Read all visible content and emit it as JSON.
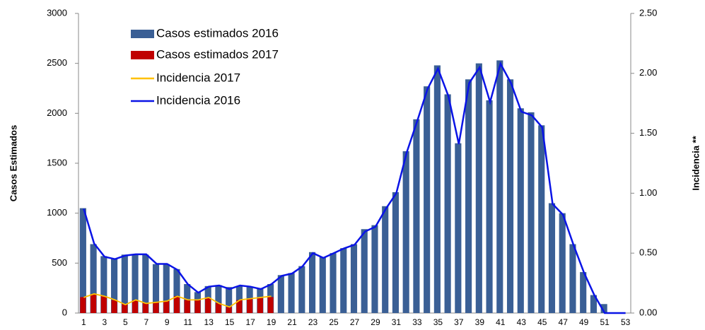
{
  "chart_data": {
    "type": "bar",
    "categories": [
      1,
      null,
      3,
      null,
      5,
      null,
      7,
      null,
      9,
      null,
      11,
      null,
      13,
      null,
      15,
      null,
      17,
      null,
      19,
      null,
      21,
      null,
      23,
      null,
      25,
      null,
      27,
      null,
      29,
      null,
      31,
      null,
      33,
      null,
      35,
      null,
      37,
      null,
      39,
      null,
      41,
      null,
      43,
      null,
      45,
      null,
      47,
      null,
      49,
      null,
      51,
      null,
      53
    ],
    "series": [
      {
        "name": "Casos estimados 2016",
        "type": "bar",
        "color": "#3a5f95",
        "values": [
          1050,
          690,
          570,
          545,
          585,
          590,
          585,
          490,
          490,
          440,
          290,
          210,
          270,
          280,
          260,
          270,
          260,
          250,
          290,
          380,
          400,
          470,
          610,
          560,
          600,
          650,
          690,
          840,
          880,
          1070,
          1210,
          1620,
          1940,
          2270,
          2480,
          2190,
          1700,
          2340,
          2500,
          2130,
          2530,
          2340,
          2050,
          2010,
          1880,
          1100,
          1000,
          690,
          410,
          180,
          90,
          0,
          0
        ]
      },
      {
        "name": "Casos estimados 2017",
        "type": "bar",
        "color": "#c00000",
        "values": [
          160,
          190,
          170,
          130,
          90,
          130,
          100,
          110,
          120,
          170,
          130,
          130,
          150,
          100,
          60,
          130,
          140,
          150,
          160,
          null,
          null,
          null,
          null,
          null,
          null,
          null,
          null,
          null,
          null,
          null,
          null,
          null,
          null,
          null,
          null,
          null,
          null,
          null,
          null,
          null,
          null,
          null,
          null,
          null,
          null,
          null,
          null,
          null,
          null,
          null,
          null,
          null,
          null
        ]
      },
      {
        "name": "Incidencia 2017",
        "type": "line",
        "axis": "y2",
        "color": "#ffc000",
        "values": [
          0.13,
          0.16,
          0.14,
          0.11,
          0.07,
          0.11,
          0.08,
          0.09,
          0.1,
          0.14,
          0.11,
          0.11,
          0.13,
          0.08,
          0.05,
          0.11,
          0.12,
          0.13,
          0.14,
          null,
          null,
          null,
          null,
          null,
          null,
          null,
          null,
          null,
          null,
          null,
          null,
          null,
          null,
          null,
          null,
          null,
          null,
          null,
          null,
          null,
          null,
          null,
          null,
          null,
          null,
          null,
          null,
          null,
          null,
          null,
          null,
          null,
          null
        ]
      },
      {
        "name": "Incidencia 2016",
        "type": "line",
        "axis": "y2",
        "color": "#0a14e6",
        "values": [
          0.87,
          0.58,
          0.47,
          0.45,
          0.48,
          0.49,
          0.49,
          0.41,
          0.41,
          0.36,
          0.24,
          0.17,
          0.22,
          0.23,
          0.2,
          0.23,
          0.22,
          0.2,
          0.24,
          0.31,
          0.33,
          0.39,
          0.5,
          0.46,
          0.5,
          0.54,
          0.57,
          0.68,
          0.72,
          0.87,
          1.0,
          1.34,
          1.6,
          1.87,
          2.04,
          1.81,
          1.41,
          1.92,
          2.05,
          1.76,
          2.08,
          1.92,
          1.68,
          1.65,
          1.55,
          0.91,
          0.82,
          0.57,
          0.34,
          0.15,
          0.0,
          0.0,
          0.0
        ]
      }
    ],
    "ylabel": "Casos Estimados",
    "y2label": "Incidencia **",
    "ylim": [
      0,
      3000
    ],
    "yticks": [
      0,
      500,
      1000,
      1500,
      2000,
      2500,
      3000
    ],
    "y2lim": [
      0,
      2.5
    ],
    "y2ticks": [
      {
        "value": 0,
        "label": "0.00"
      },
      {
        "value": 0.5,
        "label": "0.50"
      },
      {
        "value": 1,
        "label": "1.00"
      },
      {
        "value": 1.5,
        "label": "1.50"
      },
      {
        "value": 2,
        "label": "2.00"
      },
      {
        "value": 2.5,
        "label": "2.50"
      }
    ],
    "legend": "upper-left",
    "grid": false
  }
}
